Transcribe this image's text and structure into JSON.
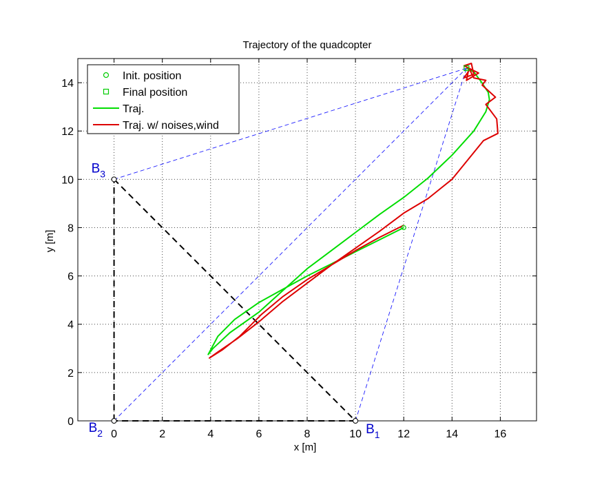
{
  "chart_data": {
    "type": "line",
    "title": "Trajectory of the quadcopter",
    "xlabel": "x [m]",
    "ylabel": "y [m]",
    "xlim": [
      -1.5,
      17.5
    ],
    "ylim": [
      0,
      15
    ],
    "xticks": [
      0,
      2,
      4,
      6,
      8,
      10,
      12,
      14,
      16
    ],
    "yticks": [
      0,
      2,
      4,
      6,
      8,
      10,
      12,
      14
    ],
    "grid": true,
    "legend_position": "top-left",
    "legend": [
      {
        "label": "Init. position",
        "color": "#00cc00",
        "marker": "circle"
      },
      {
        "label": "Final position",
        "color": "#00cc00",
        "marker": "square"
      },
      {
        "label": "Traj.",
        "color": "#00dd00",
        "marker": "line"
      },
      {
        "label": "Traj. w/ noises,wind",
        "color": "#dd0000",
        "marker": "line"
      }
    ],
    "beacons": [
      {
        "name": "B",
        "sub": "1",
        "x": 10,
        "y": 0
      },
      {
        "name": "B",
        "sub": "2",
        "x": 0,
        "y": 0
      },
      {
        "name": "B",
        "sub": "3",
        "x": 0,
        "y": 10
      }
    ],
    "init_position": {
      "x": 12,
      "y": 8
    },
    "final_position": {
      "x": 14.6,
      "y": 14.6
    },
    "series": [
      {
        "name": "Traj.",
        "color": "#00dd00",
        "points": [
          [
            12,
            8
          ],
          [
            11,
            7.5
          ],
          [
            10,
            7
          ],
          [
            9,
            6.5
          ],
          [
            8,
            6
          ],
          [
            7,
            5.45
          ],
          [
            6,
            4.9
          ],
          [
            5,
            4.2
          ],
          [
            4.3,
            3.5
          ],
          [
            3.9,
            2.75
          ],
          [
            4.1,
            3
          ],
          [
            4.8,
            3.65
          ],
          [
            6,
            4.5
          ],
          [
            7,
            5.4
          ],
          [
            8,
            6.3
          ],
          [
            9,
            7.05
          ],
          [
            10,
            7.8
          ],
          [
            11,
            8.55
          ],
          [
            12,
            9.25
          ],
          [
            13,
            10.05
          ],
          [
            14,
            11
          ],
          [
            14.9,
            12
          ],
          [
            15.4,
            12.8
          ],
          [
            15.55,
            13.3
          ],
          [
            15.5,
            13.6
          ],
          [
            15.2,
            14.05
          ],
          [
            14.9,
            14.45
          ],
          [
            14.6,
            14.6
          ]
        ]
      },
      {
        "name": "Traj. w/ noises,wind",
        "color": "#dd0000",
        "points": [
          [
            12,
            8.1
          ],
          [
            11,
            7.6
          ],
          [
            10,
            7.05
          ],
          [
            9,
            6.45
          ],
          [
            8,
            5.85
          ],
          [
            7,
            5.15
          ],
          [
            6.1,
            4.4
          ],
          [
            5.2,
            3.5
          ],
          [
            4.5,
            2.95
          ],
          [
            3.95,
            2.6
          ],
          [
            4.3,
            2.85
          ],
          [
            5.1,
            3.4
          ],
          [
            6,
            4.1
          ],
          [
            7,
            4.95
          ],
          [
            8,
            5.7
          ],
          [
            9,
            6.45
          ],
          [
            10,
            7.15
          ],
          [
            11,
            7.85
          ],
          [
            12,
            8.6
          ],
          [
            13,
            9.2
          ],
          [
            14,
            10
          ],
          [
            15.3,
            11.6
          ],
          [
            15.9,
            11.9
          ],
          [
            15.85,
            12.5
          ],
          [
            15.4,
            13.1
          ],
          [
            15.8,
            13.4
          ],
          [
            15.25,
            13.9
          ],
          [
            15.4,
            14.1
          ],
          [
            14.9,
            14.2
          ],
          [
            14.7,
            14.6
          ],
          [
            14.6,
            14.1
          ],
          [
            15.1,
            14.4
          ],
          [
            14.5,
            14.7
          ],
          [
            14.8,
            14.8
          ],
          [
            14.9,
            14.35
          ],
          [
            14.5,
            14.2
          ],
          [
            14.7,
            14.5
          ]
        ]
      }
    ]
  }
}
